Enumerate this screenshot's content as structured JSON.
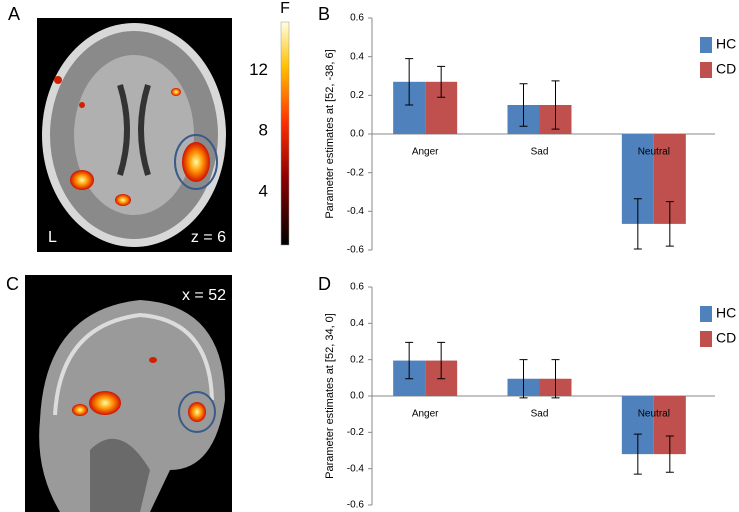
{
  "panels": [
    "A",
    "B",
    "C",
    "D"
  ],
  "brain_a": {
    "side_label": "L",
    "slice_label": "z = 6"
  },
  "brain_c": {
    "slice_label": "x = 52"
  },
  "colorbar": {
    "label": "F",
    "lim": [
      0.5,
      15.2
    ],
    "ticks": [
      4,
      8,
      12
    ]
  },
  "chart_data": [
    {
      "type": "bar",
      "y_label": "Parameter estimates at [52, -38, 6]",
      "categories": [
        "Anger",
        "Sad",
        "Neutral"
      ],
      "series": [
        {
          "name": "HC",
          "color": "#4f81bd",
          "values": [
            0.27,
            0.15,
            -0.465
          ],
          "errors": [
            0.12,
            0.11,
            0.13
          ]
        },
        {
          "name": "CD",
          "color": "#c0504d",
          "values": [
            0.27,
            0.15,
            -0.465
          ],
          "errors": [
            0.08,
            0.125,
            0.115
          ]
        }
      ],
      "ylim": [
        -0.6,
        0.6
      ],
      "yticks": [
        -0.6,
        -0.4,
        -0.2,
        {
          "value": 0,
          "label": "0.0"
        },
        0.2,
        0.4,
        0.6
      ]
    },
    {
      "type": "bar",
      "y_label": "Parameter estimates at [52, 34, 0]",
      "categories": [
        "Anger",
        "Sad",
        "Neutral"
      ],
      "series": [
        {
          "name": "HC",
          "color": "#4f81bd",
          "values": [
            0.195,
            0.095,
            -0.32
          ],
          "errors": [
            0.1,
            0.105,
            0.11
          ]
        },
        {
          "name": "CD",
          "color": "#c0504d",
          "values": [
            0.195,
            0.095,
            -0.32
          ],
          "errors": [
            0.1,
            0.105,
            0.1
          ]
        }
      ],
      "ylim": [
        -0.6,
        0.6
      ],
      "yticks": [
        -0.6,
        -0.4,
        -0.2,
        {
          "value": 0,
          "label": "0.0"
        },
        0.2,
        0.4,
        0.6
      ]
    }
  ]
}
